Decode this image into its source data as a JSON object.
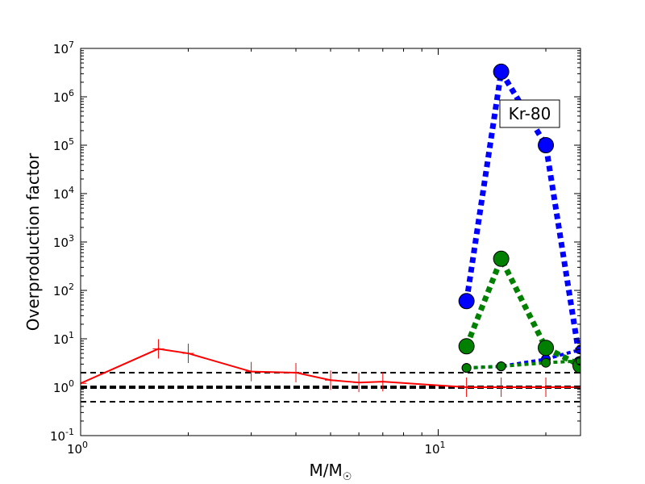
{
  "chart_data": {
    "type": "line",
    "title": "",
    "xlabel": "M/M",
    "xlabel_sub": "☉",
    "ylabel": "Overproduction factor",
    "xscale": "log",
    "yscale": "log",
    "xlim": [
      1,
      25
    ],
    "ylim": [
      0.1,
      10000000
    ],
    "grid": false,
    "x_ticks": [
      {
        "value": 1,
        "base": "10",
        "exp": "0"
      },
      {
        "value": 10,
        "base": "10",
        "exp": "1"
      }
    ],
    "y_ticks": [
      {
        "value": 0.1,
        "base": "10",
        "exp": "-1"
      },
      {
        "value": 1,
        "base": "10",
        "exp": "0"
      },
      {
        "value": 10,
        "base": "10",
        "exp": "1"
      },
      {
        "value": 100,
        "base": "10",
        "exp": "2"
      },
      {
        "value": 1000,
        "base": "10",
        "exp": "3"
      },
      {
        "value": 10000,
        "base": "10",
        "exp": "4"
      },
      {
        "value": 100000,
        "base": "10",
        "exp": "5"
      },
      {
        "value": 1000000,
        "base": "10",
        "exp": "6"
      },
      {
        "value": 10000000,
        "base": "10",
        "exp": "7"
      }
    ],
    "reference_lines": [
      {
        "y": 2,
        "style": "dashed",
        "weight": "thin",
        "color": "#000000"
      },
      {
        "y": 1,
        "style": "dashed",
        "weight": "thick",
        "color": "#000000"
      },
      {
        "y": 0.5,
        "style": "dashed",
        "weight": "thin",
        "color": "#000000"
      }
    ],
    "series": [
      {
        "color": "#ff0000",
        "style": "solid",
        "marker": "plus",
        "x": [
          1.0,
          1.65,
          2.0,
          3.0,
          4.0,
          5.0,
          6.0,
          7.0,
          12.0,
          15.0,
          20.0,
          25.0
        ],
        "y": [
          1.2,
          6.2,
          5.0,
          2.1,
          2.0,
          1.4,
          1.25,
          1.3,
          1.0,
          1.0,
          1.0,
          1.0
        ]
      },
      {
        "color": "#0000ff",
        "style": "dotted",
        "marker": "circle",
        "x": [
          12,
          15,
          20,
          25
        ],
        "y": [
          60,
          3300000,
          100000,
          3
        ]
      },
      {
        "color": "#0000ff",
        "style": "dotted",
        "marker": "circle-small",
        "x": [
          12,
          15,
          20,
          25
        ],
        "y": [
          2.5,
          2.7,
          3.8,
          6.0
        ]
      },
      {
        "color": "#008000",
        "style": "dotted",
        "marker": "circle",
        "x": [
          12,
          15,
          20,
          25
        ],
        "y": [
          7,
          450,
          6.5,
          2.8
        ]
      },
      {
        "color": "#008000",
        "style": "dotted",
        "marker": "circle-small",
        "x": [
          12,
          15,
          20,
          25
        ],
        "y": [
          2.5,
          2.7,
          3.2,
          3.5
        ]
      }
    ],
    "annotations": [
      {
        "text": "Kr-80",
        "position": "top-right",
        "boxed": true
      }
    ]
  }
}
